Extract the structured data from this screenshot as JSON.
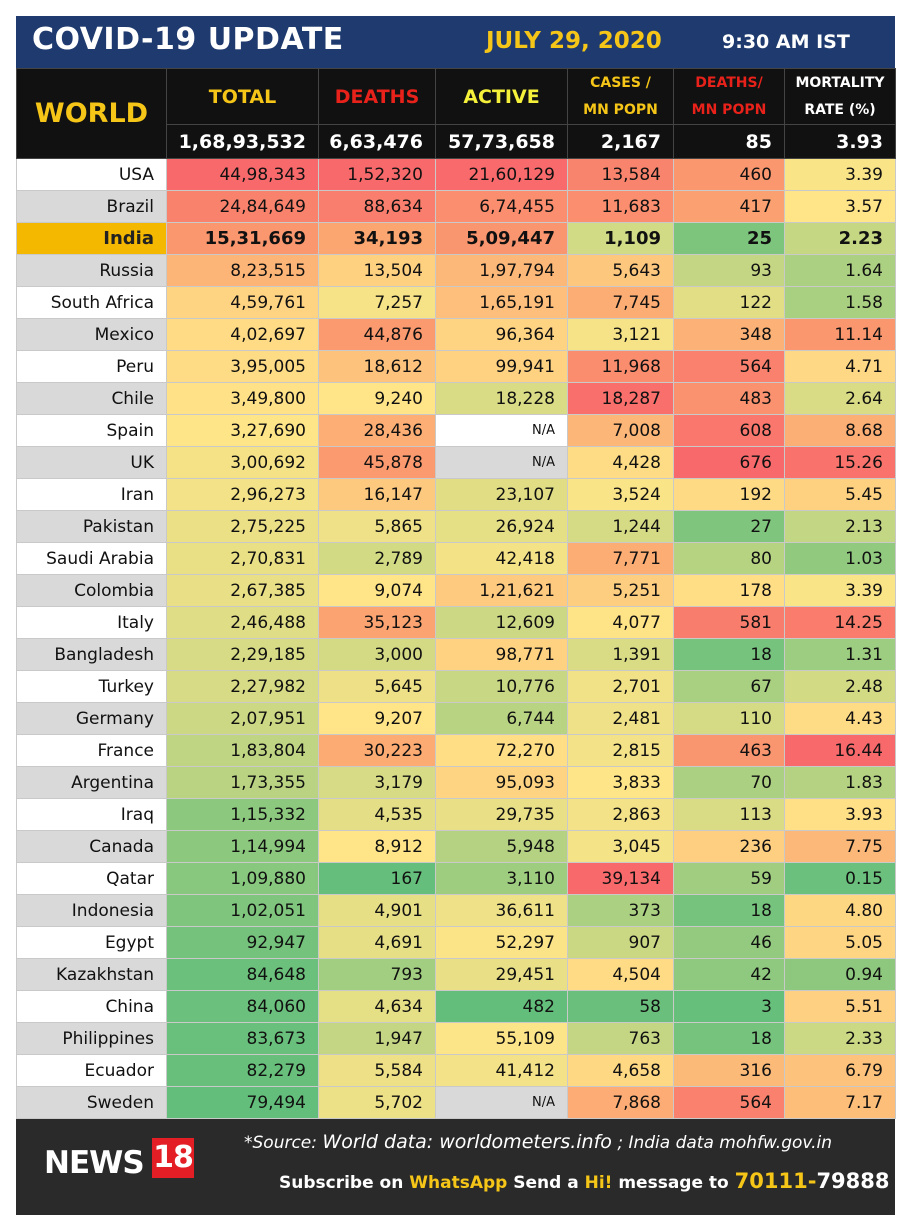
{
  "header": {
    "title": "COVID-19 UPDATE",
    "date": "JULY 29, 2020",
    "time": "9:30 AM IST"
  },
  "columns": {
    "world": "WORLD",
    "total": "TOTAL",
    "deaths": "DEATHS",
    "active": "ACTIVE",
    "cases_mn_1": "CASES /",
    "cases_mn_2": "MN POPN",
    "deaths_mn_1": "DEATHS/",
    "deaths_mn_2": "MN POPN",
    "mortality_1": "MORTALITY",
    "mortality_2": "RATE (%)"
  },
  "colors": {
    "header_bg": "#1f3a6e",
    "accent_yellow": "#f5c518",
    "header_red": "#e8221a",
    "scale_red": "#f8696b",
    "scale_orange": "#fba170",
    "scale_yellow": "#ffe588",
    "scale_green": "#63be7b"
  },
  "world": {
    "total": "1,68,93,532",
    "deaths": "6,63,476",
    "active": "57,73,658",
    "cases_mn": "2,167",
    "deaths_mn": "85",
    "mortality": "3.93"
  },
  "rows": [
    {
      "country": "USA",
      "total": "44,98,343",
      "deaths": "1,52,320",
      "active": "21,60,129",
      "cases_mn": "13,584",
      "deaths_mn": "460",
      "mortality": "3.39"
    },
    {
      "country": "Brazil",
      "total": "24,84,649",
      "deaths": "88,634",
      "active": "6,74,455",
      "cases_mn": "11,683",
      "deaths_mn": "417",
      "mortality": "3.57"
    },
    {
      "country": "India",
      "total": "15,31,669",
      "deaths": "34,193",
      "active": "5,09,447",
      "cases_mn": "1,109",
      "deaths_mn": "25",
      "mortality": "2.23"
    },
    {
      "country": "Russia",
      "total": "8,23,515",
      "deaths": "13,504",
      "active": "1,97,794",
      "cases_mn": "5,643",
      "deaths_mn": "93",
      "mortality": "1.64"
    },
    {
      "country": "South Africa",
      "total": "4,59,761",
      "deaths": "7,257",
      "active": "1,65,191",
      "cases_mn": "7,745",
      "deaths_mn": "122",
      "mortality": "1.58"
    },
    {
      "country": "Mexico",
      "total": "4,02,697",
      "deaths": "44,876",
      "active": "96,364",
      "cases_mn": "3,121",
      "deaths_mn": "348",
      "mortality": "11.14"
    },
    {
      "country": "Peru",
      "total": "3,95,005",
      "deaths": "18,612",
      "active": "99,941",
      "cases_mn": "11,968",
      "deaths_mn": "564",
      "mortality": "4.71"
    },
    {
      "country": "Chile",
      "total": "3,49,800",
      "deaths": "9,240",
      "active": "18,228",
      "cases_mn": "18,287",
      "deaths_mn": "483",
      "mortality": "2.64"
    },
    {
      "country": "Spain",
      "total": "3,27,690",
      "deaths": "28,436",
      "active": "N/A",
      "cases_mn": "7,008",
      "deaths_mn": "608",
      "mortality": "8.68"
    },
    {
      "country": "UK",
      "total": "3,00,692",
      "deaths": "45,878",
      "active": "N/A",
      "cases_mn": "4,428",
      "deaths_mn": "676",
      "mortality": "15.26"
    },
    {
      "country": "Iran",
      "total": "2,96,273",
      "deaths": "16,147",
      "active": "23,107",
      "cases_mn": "3,524",
      "deaths_mn": "192",
      "mortality": "5.45"
    },
    {
      "country": "Pakistan",
      "total": "2,75,225",
      "deaths": "5,865",
      "active": "26,924",
      "cases_mn": "1,244",
      "deaths_mn": "27",
      "mortality": "2.13"
    },
    {
      "country": "Saudi Arabia",
      "total": "2,70,831",
      "deaths": "2,789",
      "active": "42,418",
      "cases_mn": "7,771",
      "deaths_mn": "80",
      "mortality": "1.03"
    },
    {
      "country": "Colombia",
      "total": "2,67,385",
      "deaths": "9,074",
      "active": "1,21,621",
      "cases_mn": "5,251",
      "deaths_mn": "178",
      "mortality": "3.39"
    },
    {
      "country": "Italy",
      "total": "2,46,488",
      "deaths": "35,123",
      "active": "12,609",
      "cases_mn": "4,077",
      "deaths_mn": "581",
      "mortality": "14.25"
    },
    {
      "country": "Bangladesh",
      "total": "2,29,185",
      "deaths": "3,000",
      "active": "98,771",
      "cases_mn": "1,391",
      "deaths_mn": "18",
      "mortality": "1.31"
    },
    {
      "country": "Turkey",
      "total": "2,27,982",
      "deaths": "5,645",
      "active": "10,776",
      "cases_mn": "2,701",
      "deaths_mn": "67",
      "mortality": "2.48"
    },
    {
      "country": "Germany",
      "total": "2,07,951",
      "deaths": "9,207",
      "active": "6,744",
      "cases_mn": "2,481",
      "deaths_mn": "110",
      "mortality": "4.43"
    },
    {
      "country": "France",
      "total": "1,83,804",
      "deaths": "30,223",
      "active": "72,270",
      "cases_mn": "2,815",
      "deaths_mn": "463",
      "mortality": "16.44"
    },
    {
      "country": "Argentina",
      "total": "1,73,355",
      "deaths": "3,179",
      "active": "95,093",
      "cases_mn": "3,833",
      "deaths_mn": "70",
      "mortality": "1.83"
    },
    {
      "country": "Iraq",
      "total": "1,15,332",
      "deaths": "4,535",
      "active": "29,735",
      "cases_mn": "2,863",
      "deaths_mn": "113",
      "mortality": "3.93"
    },
    {
      "country": "Canada",
      "total": "1,14,994",
      "deaths": "8,912",
      "active": "5,948",
      "cases_mn": "3,045",
      "deaths_mn": "236",
      "mortality": "7.75"
    },
    {
      "country": "Qatar",
      "total": "1,09,880",
      "deaths": "167",
      "active": "3,110",
      "cases_mn": "39,134",
      "deaths_mn": "59",
      "mortality": "0.15"
    },
    {
      "country": "Indonesia",
      "total": "1,02,051",
      "deaths": "4,901",
      "active": "36,611",
      "cases_mn": "373",
      "deaths_mn": "18",
      "mortality": "4.80"
    },
    {
      "country": "Egypt",
      "total": "92,947",
      "deaths": "4,691",
      "active": "52,297",
      "cases_mn": "907",
      "deaths_mn": "46",
      "mortality": "5.05"
    },
    {
      "country": "Kazakhstan",
      "total": "84,648",
      "deaths": "793",
      "active": "29,451",
      "cases_mn": "4,504",
      "deaths_mn": "42",
      "mortality": "0.94"
    },
    {
      "country": "China",
      "total": "84,060",
      "deaths": "4,634",
      "active": "482",
      "cases_mn": "58",
      "deaths_mn": "3",
      "mortality": "5.51"
    },
    {
      "country": "Philippines",
      "total": "83,673",
      "deaths": "1,947",
      "active": "55,109",
      "cases_mn": "763",
      "deaths_mn": "18",
      "mortality": "2.33"
    },
    {
      "country": "Ecuador",
      "total": "82,279",
      "deaths": "5,584",
      "active": "41,412",
      "cases_mn": "4,658",
      "deaths_mn": "316",
      "mortality": "6.79"
    },
    {
      "country": "Sweden",
      "total": "79,494",
      "deaths": "5,702",
      "active": "N/A",
      "cases_mn": "7,868",
      "deaths_mn": "564",
      "mortality": "7.17"
    }
  ],
  "footer": {
    "logo_news": "NEWS",
    "logo_num": "18",
    "source_label": "*Source:",
    "source_world": "World data: worldometers.info",
    "source_sep": ";",
    "source_india": "India data mohfw.gov.in",
    "subscribe_1": "Subscribe on",
    "subscribe_app": "WhatsApp",
    "subscribe_2": "Send a",
    "subscribe_hi": "Hi!",
    "subscribe_3": "message to",
    "phone_a": "70111-",
    "phone_b": "79888"
  }
}
